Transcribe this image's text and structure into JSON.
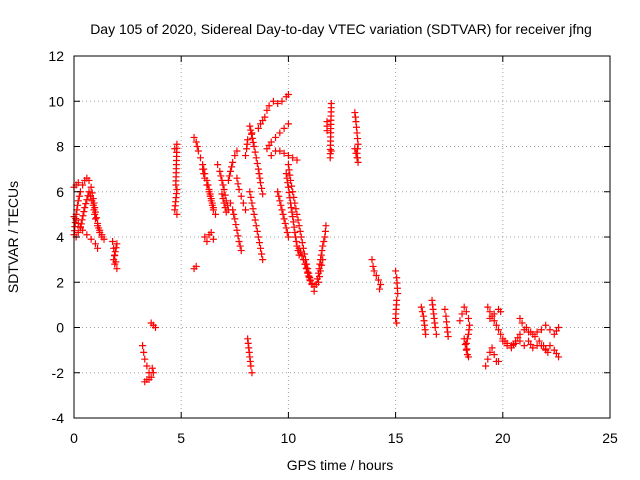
{
  "chart_data": {
    "type": "scatter",
    "title": "Day 105 of 2020, Sidereal Day-to-day VTEC variation (SDTVAR) for receiver jfng",
    "xlabel": "GPS time / hours",
    "ylabel": "SDTVAR / TECUs",
    "xlim": [
      0,
      25
    ],
    "ylim": [
      -4,
      12
    ],
    "xticks": [
      0,
      5,
      10,
      15,
      20,
      25
    ],
    "yticks": [
      -4,
      -2,
      0,
      2,
      4,
      6,
      8,
      10,
      12
    ],
    "grid": true,
    "marker": "+",
    "color": "#ff0000",
    "segments": [
      [
        [
          0.0,
          4.1
        ],
        [
          0.1,
          5.0
        ],
        [
          0.2,
          5.6
        ],
        [
          0.3,
          6.0
        ],
        [
          0.4,
          6.3
        ],
        [
          0.5,
          6.5
        ],
        [
          0.6,
          6.6
        ],
        [
          0.7,
          6.5
        ],
        [
          0.8,
          6.2
        ],
        [
          0.9,
          5.7
        ],
        [
          1.0,
          5.1
        ],
        [
          1.1,
          4.6
        ],
        [
          1.2,
          4.2
        ],
        [
          1.3,
          4.0
        ]
      ],
      [
        [
          0.0,
          6.2
        ],
        [
          0.1,
          6.3
        ],
        [
          0.2,
          6.4
        ]
      ],
      [
        [
          0.0,
          4.9
        ],
        [
          0.2,
          4.6
        ],
        [
          0.4,
          4.3
        ],
        [
          0.6,
          4.1
        ],
        [
          0.8,
          3.9
        ],
        [
          1.0,
          3.7
        ],
        [
          1.1,
          3.5
        ]
      ],
      [
        [
          0.1,
          4.0
        ],
        [
          0.3,
          4.4
        ],
        [
          0.5,
          5.3
        ],
        [
          0.7,
          6.0
        ],
        [
          0.9,
          5.4
        ],
        [
          1.0,
          4.8
        ],
        [
          1.1,
          4.5
        ],
        [
          1.2,
          4.3
        ],
        [
          1.3,
          4.1
        ],
        [
          1.4,
          3.9
        ]
      ],
      [
        [
          1.8,
          3.8
        ],
        [
          1.85,
          3.5
        ],
        [
          1.9,
          3.2
        ],
        [
          1.95,
          2.9
        ],
        [
          2.0,
          2.6
        ],
        [
          1.9,
          2.8
        ],
        [
          1.85,
          3.0
        ],
        [
          2.0,
          3.7
        ]
      ],
      [
        [
          3.2,
          -0.8
        ],
        [
          3.25,
          -1.1
        ],
        [
          3.3,
          -1.4
        ],
        [
          3.4,
          -1.7
        ],
        [
          3.5,
          -2.0
        ],
        [
          3.4,
          -2.3
        ],
        [
          3.3,
          -2.4
        ],
        [
          3.5,
          -2.3
        ],
        [
          3.6,
          -2.2
        ],
        [
          3.7,
          -2.0
        ],
        [
          3.65,
          -1.8
        ]
      ],
      [
        [
          3.6,
          0.2
        ],
        [
          3.7,
          0.1
        ],
        [
          3.8,
          0.0
        ]
      ],
      [
        [
          4.7,
          7.9
        ],
        [
          4.8,
          8.1
        ],
        [
          4.75,
          6.3
        ],
        [
          4.8,
          6.1
        ],
        [
          4.7,
          5.2
        ],
        [
          4.8,
          5.0
        ]
      ],
      [
        [
          5.6,
          8.4
        ],
        [
          5.7,
          8.2
        ],
        [
          5.75,
          8.0
        ],
        [
          5.8,
          7.8
        ],
        [
          5.9,
          7.5
        ],
        [
          6.0,
          7.2
        ],
        [
          6.1,
          6.8
        ],
        [
          6.2,
          6.5
        ],
        [
          6.3,
          6.1
        ],
        [
          6.4,
          5.7
        ],
        [
          6.5,
          5.3
        ],
        [
          6.6,
          5.0
        ]
      ],
      [
        [
          5.6,
          2.6
        ],
        [
          5.7,
          2.7
        ]
      ],
      [
        [
          6.0,
          7.0
        ],
        [
          6.1,
          6.6
        ],
        [
          6.2,
          6.3
        ],
        [
          6.3,
          6.0
        ],
        [
          6.4,
          5.6
        ],
        [
          6.5,
          5.2
        ]
      ],
      [
        [
          6.1,
          4.0
        ],
        [
          6.2,
          3.8
        ],
        [
          6.3,
          4.1
        ],
        [
          6.4,
          4.2
        ],
        [
          6.5,
          3.9
        ]
      ],
      [
        [
          6.7,
          7.2
        ],
        [
          6.8,
          6.9
        ],
        [
          6.9,
          6.5
        ],
        [
          7.0,
          6.1
        ],
        [
          7.1,
          5.6
        ],
        [
          7.2,
          5.2
        ]
      ],
      [
        [
          6.9,
          5.9
        ],
        [
          7.0,
          5.5
        ],
        [
          7.1,
          5.1
        ]
      ],
      [
        [
          7.2,
          6.5
        ],
        [
          7.3,
          6.9
        ],
        [
          7.4,
          7.3
        ],
        [
          7.5,
          7.6
        ],
        [
          7.6,
          7.8
        ]
      ],
      [
        [
          7.3,
          5.5
        ],
        [
          7.4,
          5.2
        ],
        [
          7.5,
          4.8
        ],
        [
          7.6,
          4.3
        ],
        [
          7.7,
          3.8
        ],
        [
          7.8,
          3.4
        ]
      ],
      [
        [
          7.6,
          6.6
        ],
        [
          7.7,
          6.1
        ],
        [
          7.8,
          5.8
        ],
        [
          7.9,
          5.5
        ],
        [
          8.0,
          5.2
        ]
      ],
      [
        [
          8.0,
          7.6
        ],
        [
          8.05,
          7.9
        ],
        [
          8.1,
          8.3
        ]
      ],
      [
        [
          8.3,
          8.6
        ],
        [
          8.2,
          8.9
        ],
        [
          8.4,
          8.0
        ],
        [
          8.5,
          7.5
        ],
        [
          8.6,
          7.0
        ],
        [
          8.7,
          6.4
        ],
        [
          8.8,
          5.9
        ]
      ],
      [
        [
          8.2,
          6.0
        ],
        [
          8.3,
          5.5
        ],
        [
          8.4,
          5.0
        ],
        [
          8.5,
          4.5
        ],
        [
          8.6,
          4.0
        ],
        [
          8.7,
          3.5
        ],
        [
          8.8,
          3.0
        ]
      ],
      [
        [
          8.1,
          -0.5
        ],
        [
          8.15,
          -0.9
        ],
        [
          8.2,
          -1.3
        ],
        [
          8.25,
          -1.7
        ],
        [
          8.3,
          -2.0
        ]
      ],
      [
        [
          8.6,
          8.8
        ],
        [
          8.7,
          9.0
        ],
        [
          8.9,
          9.3
        ]
      ],
      [
        [
          9.0,
          7.9
        ],
        [
          9.2,
          8.2
        ],
        [
          9.4,
          8.4
        ],
        [
          9.6,
          8.6
        ],
        [
          9.8,
          8.8
        ],
        [
          10.0,
          9.0
        ]
      ],
      [
        [
          9.0,
          9.6
        ],
        [
          9.1,
          9.8
        ],
        [
          9.3,
          10.0
        ],
        [
          9.5,
          9.9
        ],
        [
          9.7,
          10.0
        ],
        [
          9.9,
          10.2
        ],
        [
          10.0,
          10.3
        ]
      ],
      [
        [
          9.2,
          7.6
        ],
        [
          9.4,
          7.8
        ],
        [
          9.6,
          7.8
        ],
        [
          9.8,
          7.7
        ],
        [
          10.0,
          7.6
        ],
        [
          10.2,
          7.5
        ],
        [
          10.4,
          7.4
        ]
      ],
      [
        [
          9.9,
          6.8
        ],
        [
          10.0,
          6.2
        ],
        [
          10.1,
          5.5
        ],
        [
          10.2,
          4.9
        ],
        [
          10.3,
          4.2
        ],
        [
          10.4,
          3.6
        ],
        [
          10.5,
          3.2
        ]
      ],
      [
        [
          10.0,
          7.2
        ],
        [
          10.1,
          6.5
        ],
        [
          10.2,
          6.0
        ],
        [
          10.3,
          5.5
        ],
        [
          10.4,
          5.0
        ],
        [
          10.5,
          4.5
        ],
        [
          10.6,
          4.0
        ],
        [
          10.7,
          3.5
        ],
        [
          10.8,
          3.0
        ],
        [
          10.9,
          2.6
        ],
        [
          11.0,
          2.2
        ],
        [
          11.1,
          1.9
        ]
      ],
      [
        [
          10.5,
          3.5
        ],
        [
          10.7,
          3.0
        ],
        [
          10.9,
          2.4
        ],
        [
          11.1,
          1.9
        ],
        [
          11.2,
          1.6
        ],
        [
          11.3,
          1.9
        ],
        [
          11.4,
          2.4
        ],
        [
          11.5,
          3.0
        ],
        [
          11.6,
          3.6
        ],
        [
          11.7,
          4.0
        ],
        [
          11.75,
          4.5
        ]
      ],
      [
        [
          10.8,
          2.8
        ],
        [
          11.0,
          2.1
        ],
        [
          11.2,
          1.8
        ],
        [
          11.4,
          2.0
        ],
        [
          11.5,
          2.5
        ],
        [
          11.6,
          3.0
        ]
      ],
      [
        [
          9.5,
          6.0
        ],
        [
          9.6,
          5.6
        ],
        [
          9.7,
          5.2
        ],
        [
          9.8,
          4.8
        ],
        [
          9.9,
          4.4
        ],
        [
          10.0,
          4.0
        ]
      ],
      [
        [
          12.0,
          9.9
        ],
        [
          11.95,
          7.5
        ],
        [
          12.0,
          7.8
        ]
      ],
      [
        [
          11.8,
          8.7
        ],
        [
          11.8,
          9.1
        ]
      ],
      [
        [
          13.1,
          9.5
        ],
        [
          13.15,
          9.1
        ],
        [
          13.2,
          8.6
        ],
        [
          13.25,
          8.1
        ],
        [
          13.2,
          7.7
        ],
        [
          13.25,
          7.3
        ],
        [
          13.1,
          7.9
        ]
      ],
      [
        [
          13.9,
          3.0
        ],
        [
          13.95,
          2.7
        ],
        [
          14.0,
          2.5
        ],
        [
          14.1,
          2.3
        ],
        [
          14.2,
          2.1
        ],
        [
          14.3,
          1.9
        ],
        [
          14.25,
          1.7
        ]
      ],
      [
        [
          15.0,
          2.5
        ],
        [
          15.05,
          2.2
        ],
        [
          15.1,
          1.5
        ],
        [
          15.05,
          1.2
        ],
        [
          15.0,
          0.4
        ],
        [
          15.05,
          0.2
        ]
      ],
      [
        [
          16.2,
          0.9
        ],
        [
          16.3,
          0.5
        ],
        [
          16.35,
          0.1
        ],
        [
          16.4,
          -0.3
        ]
      ],
      [
        [
          16.7,
          1.2
        ],
        [
          16.75,
          0.8
        ],
        [
          16.8,
          0.4
        ],
        [
          16.85,
          0.0
        ],
        [
          16.9,
          -0.3
        ]
      ],
      [
        [
          17.3,
          0.8
        ],
        [
          17.35,
          0.5
        ],
        [
          17.4,
          0.0
        ],
        [
          17.45,
          -0.4
        ]
      ],
      [
        [
          18.0,
          0.3
        ],
        [
          18.1,
          0.6
        ],
        [
          18.2,
          0.9
        ],
        [
          18.3,
          0.7
        ],
        [
          18.4,
          0.4
        ],
        [
          18.45,
          0.1
        ],
        [
          18.4,
          -0.3
        ],
        [
          18.3,
          -0.7
        ],
        [
          18.35,
          -1.2
        ]
      ],
      [
        [
          18.2,
          -0.5
        ],
        [
          18.3,
          -1.0
        ],
        [
          18.4,
          -1.3
        ]
      ],
      [
        [
          19.2,
          -1.7
        ],
        [
          19.3,
          -1.4
        ],
        [
          19.4,
          -1.1
        ],
        [
          19.5,
          -0.9
        ],
        [
          19.6,
          -1.2
        ],
        [
          19.7,
          -1.5
        ],
        [
          19.8,
          -1.5
        ]
      ],
      [
        [
          19.3,
          0.9
        ],
        [
          19.4,
          0.7
        ],
        [
          19.5,
          0.5
        ],
        [
          19.6,
          0.3
        ],
        [
          19.7,
          0.1
        ],
        [
          19.8,
          -0.1
        ],
        [
          19.9,
          -0.3
        ],
        [
          20.0,
          -0.5
        ],
        [
          20.1,
          -0.6
        ],
        [
          20.2,
          -0.8
        ]
      ],
      [
        [
          20.0,
          -0.6
        ],
        [
          20.2,
          -0.7
        ],
        [
          20.4,
          -0.8
        ],
        [
          20.6,
          -0.7
        ],
        [
          20.8,
          -0.6
        ],
        [
          21.0,
          -0.8
        ],
        [
          21.2,
          -0.6
        ],
        [
          21.4,
          -0.9
        ],
        [
          21.6,
          -0.8
        ],
        [
          21.8,
          -0.8
        ],
        [
          22.0,
          -1.0
        ],
        [
          22.2,
          -0.8
        ],
        [
          22.4,
          -1.0
        ],
        [
          22.6,
          -1.3
        ]
      ],
      [
        [
          20.8,
          0.4
        ],
        [
          20.9,
          0.2
        ],
        [
          21.1,
          0.0
        ],
        [
          21.3,
          -0.2
        ],
        [
          21.5,
          -0.4
        ],
        [
          21.7,
          -0.6
        ],
        [
          21.9,
          -0.8
        ],
        [
          22.1,
          -1.1
        ]
      ],
      [
        [
          20.4,
          -0.9
        ],
        [
          20.6,
          -0.6
        ],
        [
          20.8,
          -0.3
        ],
        [
          21.0,
          -0.1
        ],
        [
          21.2,
          -0.2
        ],
        [
          21.4,
          -0.3
        ],
        [
          21.6,
          -0.2
        ],
        [
          21.8,
          -0.1
        ],
        [
          22.0,
          0.1
        ],
        [
          22.2,
          -0.1
        ],
        [
          22.4,
          -0.3
        ],
        [
          22.6,
          0.0
        ]
      ],
      [
        [
          19.4,
          0.4
        ],
        [
          19.6,
          0.6
        ],
        [
          19.8,
          0.8
        ],
        [
          19.9,
          0.7
        ]
      ]
    ]
  }
}
